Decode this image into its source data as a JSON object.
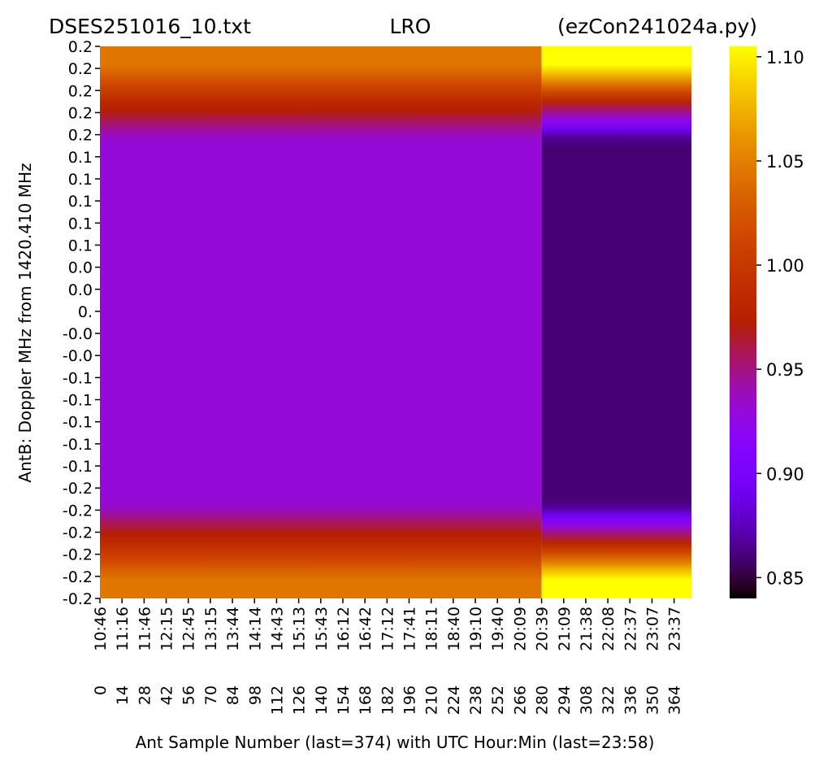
{
  "chart_data": {
    "type": "heatmap",
    "title_left": "DSES251016_10.txt",
    "title_center": "LRO",
    "title_right": "(ezCon241024a.py)",
    "ylabel": "AntB:  Doppler MHz from 1420.410 MHz",
    "xlabel": "Ant Sample Number (last=374) with UTC Hour:Min (last=23:58)",
    "y_tick_labels": [
      "0.2",
      "0.2",
      "0.2",
      "0.2",
      "0.2",
      "0.1",
      "0.1",
      "0.1",
      "0.1",
      "0.1",
      "0.0",
      "0.0",
      "0.",
      "-0.0",
      "-0.0",
      "-0.1",
      "-0.1",
      "-0.1",
      "-0.1",
      "-0.1",
      "-0.2",
      "-0.2",
      "-0.2",
      "-0.2",
      "-0.2",
      "-0.2"
    ],
    "x_time_labels": [
      "10:46",
      "11:16",
      "11:46",
      "12:15",
      "12:45",
      "13:15",
      "13:44",
      "14:14",
      "14:43",
      "15:13",
      "15:43",
      "16:12",
      "16:42",
      "17:12",
      "17:41",
      "18:11",
      "18:40",
      "19:10",
      "19:40",
      "20:09",
      "20:39",
      "21:09",
      "21:38",
      "22:08",
      "22:37",
      "23:07",
      "23:37"
    ],
    "x_sample_labels": [
      "0",
      "14",
      "28",
      "42",
      "56",
      "70",
      "84",
      "98",
      "112",
      "126",
      "140",
      "154",
      "168",
      "182",
      "196",
      "210",
      "224",
      "238",
      "252",
      "266",
      "280",
      "294",
      "308",
      "322",
      "336",
      "350",
      "364"
    ],
    "x_sample_values": [
      0,
      14,
      28,
      42,
      56,
      70,
      84,
      98,
      112,
      126,
      140,
      154,
      168,
      182,
      196,
      210,
      224,
      238,
      252,
      266,
      280,
      294,
      308,
      322,
      336,
      350,
      364
    ],
    "x_range": [
      0,
      375
    ],
    "colorbar": {
      "min": 0.84,
      "max": 1.105,
      "ticks": [
        0.85,
        0.9,
        0.95,
        1.0,
        1.05,
        1.1
      ],
      "tick_labels": [
        "0.85",
        "0.90",
        "0.95",
        "1.00",
        "1.05",
        "1.10"
      ],
      "colormap": "gnuplot"
    },
    "segments": [
      {
        "x_start": 0,
        "x_end": 280,
        "edge_value": 1.045,
        "ridge_value": 0.985,
        "center_value": 0.93
      },
      {
        "x_start": 280,
        "x_end": 375,
        "edge_value": 1.11,
        "ridge_value": 0.98,
        "center_value": 0.86
      }
    ]
  }
}
